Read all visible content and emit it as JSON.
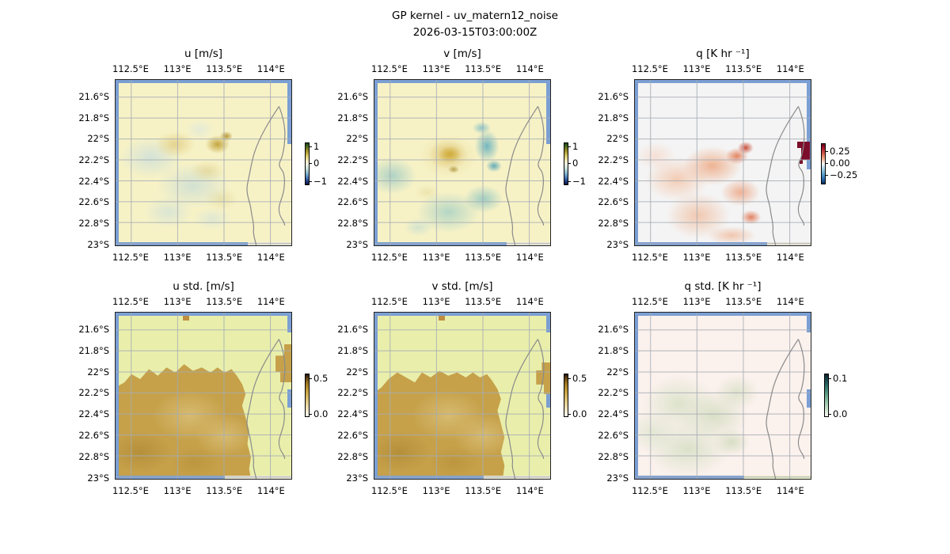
{
  "figure": {
    "suptitle": "GP kernel - uv_matern12_noise",
    "timestamp": "2026-03-15T03:00:00Z"
  },
  "axes": {
    "x_tick_labels": [
      "112.5°E",
      "113°E",
      "113.5°E",
      "114°E"
    ],
    "y_tick_labels": [
      "21.6°S",
      "21.8°S",
      "22°S",
      "22.2°S",
      "22.4°S",
      "22.6°S",
      "22.8°S",
      "23°S"
    ]
  },
  "panels": [
    {
      "id": "u",
      "title": "u [m/s]",
      "colorbar_ticks": [
        "1",
        "0",
        "−1"
      ]
    },
    {
      "id": "v",
      "title": "v [m/s]",
      "colorbar_ticks": [
        "1",
        "0",
        "−1"
      ]
    },
    {
      "id": "q",
      "title": "q [K hr ⁻¹]",
      "colorbar_ticks": [
        "0.25",
        "0.00",
        "−0.25"
      ]
    },
    {
      "id": "u_std",
      "title": "u std. [m/s]",
      "colorbar_ticks": [
        "0.5",
        "0.0"
      ]
    },
    {
      "id": "v_std",
      "title": "v std. [m/s]",
      "colorbar_ticks": [
        "0.5",
        "0.0"
      ]
    },
    {
      "id": "q_std",
      "title": "q std. [K hr ⁻¹]",
      "colorbar_ticks": [
        "0.1",
        "0.0"
      ]
    }
  ],
  "colors": {
    "ocean_edge_mask": "#7b9fd3",
    "graticule": "#a6abb4",
    "coastline": "#8a8a8a",
    "uv_field_base": "#f7f2c6",
    "q_field_base": "#f4f4f4",
    "uv_std_base": "#e9efab",
    "q_std_base": "#fbf1ed",
    "std_high_tan": "#c6a14a",
    "q_max_maroon": "#7c0e2c"
  },
  "chart_data": {
    "type": "heatmap",
    "subtype": "2x3 multi-panel geospatial fields (GP regression mean and std)",
    "suptitle": "GP kernel - uv_matern12_noise",
    "timestamp": "2026-03-15T03:00:00Z",
    "x_axis": {
      "label": "longitude",
      "tick_values_deg_e": [
        112.5,
        113.0,
        113.5,
        114.0
      ],
      "approx_range_deg_e": [
        112.32,
        114.21
      ],
      "ticks_shown": "top and bottom of every panel"
    },
    "y_axis": {
      "label": "latitude",
      "tick_values_deg_s": [
        21.6,
        21.8,
        22.0,
        22.2,
        22.4,
        22.6,
        22.8,
        23.0
      ],
      "approx_range_deg_s": [
        21.43,
        23.03
      ]
    },
    "grid": true,
    "overlays": [
      "gray graticule on top of data",
      "gray coastline of Exmouth peninsula and gulf near 114°E",
      "blue masked stripes along domain edges"
    ],
    "panels": [
      {
        "row": 0,
        "col": 0,
        "title": "u [m/s]",
        "colorbar_ticks": [
          1,
          0,
          -1
        ],
        "cmap": "diverging dark-green/gold → cream → blue/dark-navy",
        "features": "field mostly pale yellow (~0.1); faint pale-teal and tan mottling over the southwest half; small gold maxima near 113.4°E 22.1°S"
      },
      {
        "row": 0,
        "col": 1,
        "title": "v [m/s]",
        "colorbar_ticks": [
          1,
          0,
          -1
        ],
        "cmap": "diverging dark-green/gold → cream → blue/dark-navy",
        "features": "strong gold positive blob centered near 113.1°E 22.35°S; teal negative patches to its west, southeast and along the coast near 113.6°E"
      },
      {
        "row": 0,
        "col": 2,
        "title": "q [K hr ⁻¹]",
        "colorbar_ticks": [
          0.25,
          0.0,
          -0.25
        ],
        "cmap": "RdBu reversed (red positive, blue negative)",
        "features": "light-gray near-zero background; weak positive salmon field southwest of the coastline, strongest (orange) near 113.5°E 22.3°S; dark-maroon maximum on the eastern edge near 114.2°E 22.0–22.2°S"
      },
      {
        "row": 1,
        "col": 0,
        "title": "u std. [m/s]",
        "colorbar_ticks": [
          0.5,
          0.0
        ],
        "cmap": "cream → tan → dark brown",
        "features": "high std (tan ~0.3) over the ocean south of a jagged boundary near 22.1–22.2°S; low (pale) to the north and over land; small tan patches at top centre and along the gulf at 114.2°E"
      },
      {
        "row": 1,
        "col": 1,
        "title": "v std. [m/s]",
        "colorbar_ticks": [
          0.5,
          0.0
        ],
        "cmap": "cream → tan → dark brown",
        "features": "same pattern as u std.: tan high-std region south of ~22.15°S with jagged edge, pale elsewhere, small patches top-centre and on the gulf edge"
      },
      {
        "row": 1,
        "col": 2,
        "title": "q std. [K hr ⁻¹]",
        "colorbar_ticks": [
          0.1,
          0.0
        ],
        "cmap": "white → teal → dark slate",
        "features": "near-zero everywhere (pale pink-white); very faint sage-green texture over the southwest ocean region"
      }
    ]
  }
}
